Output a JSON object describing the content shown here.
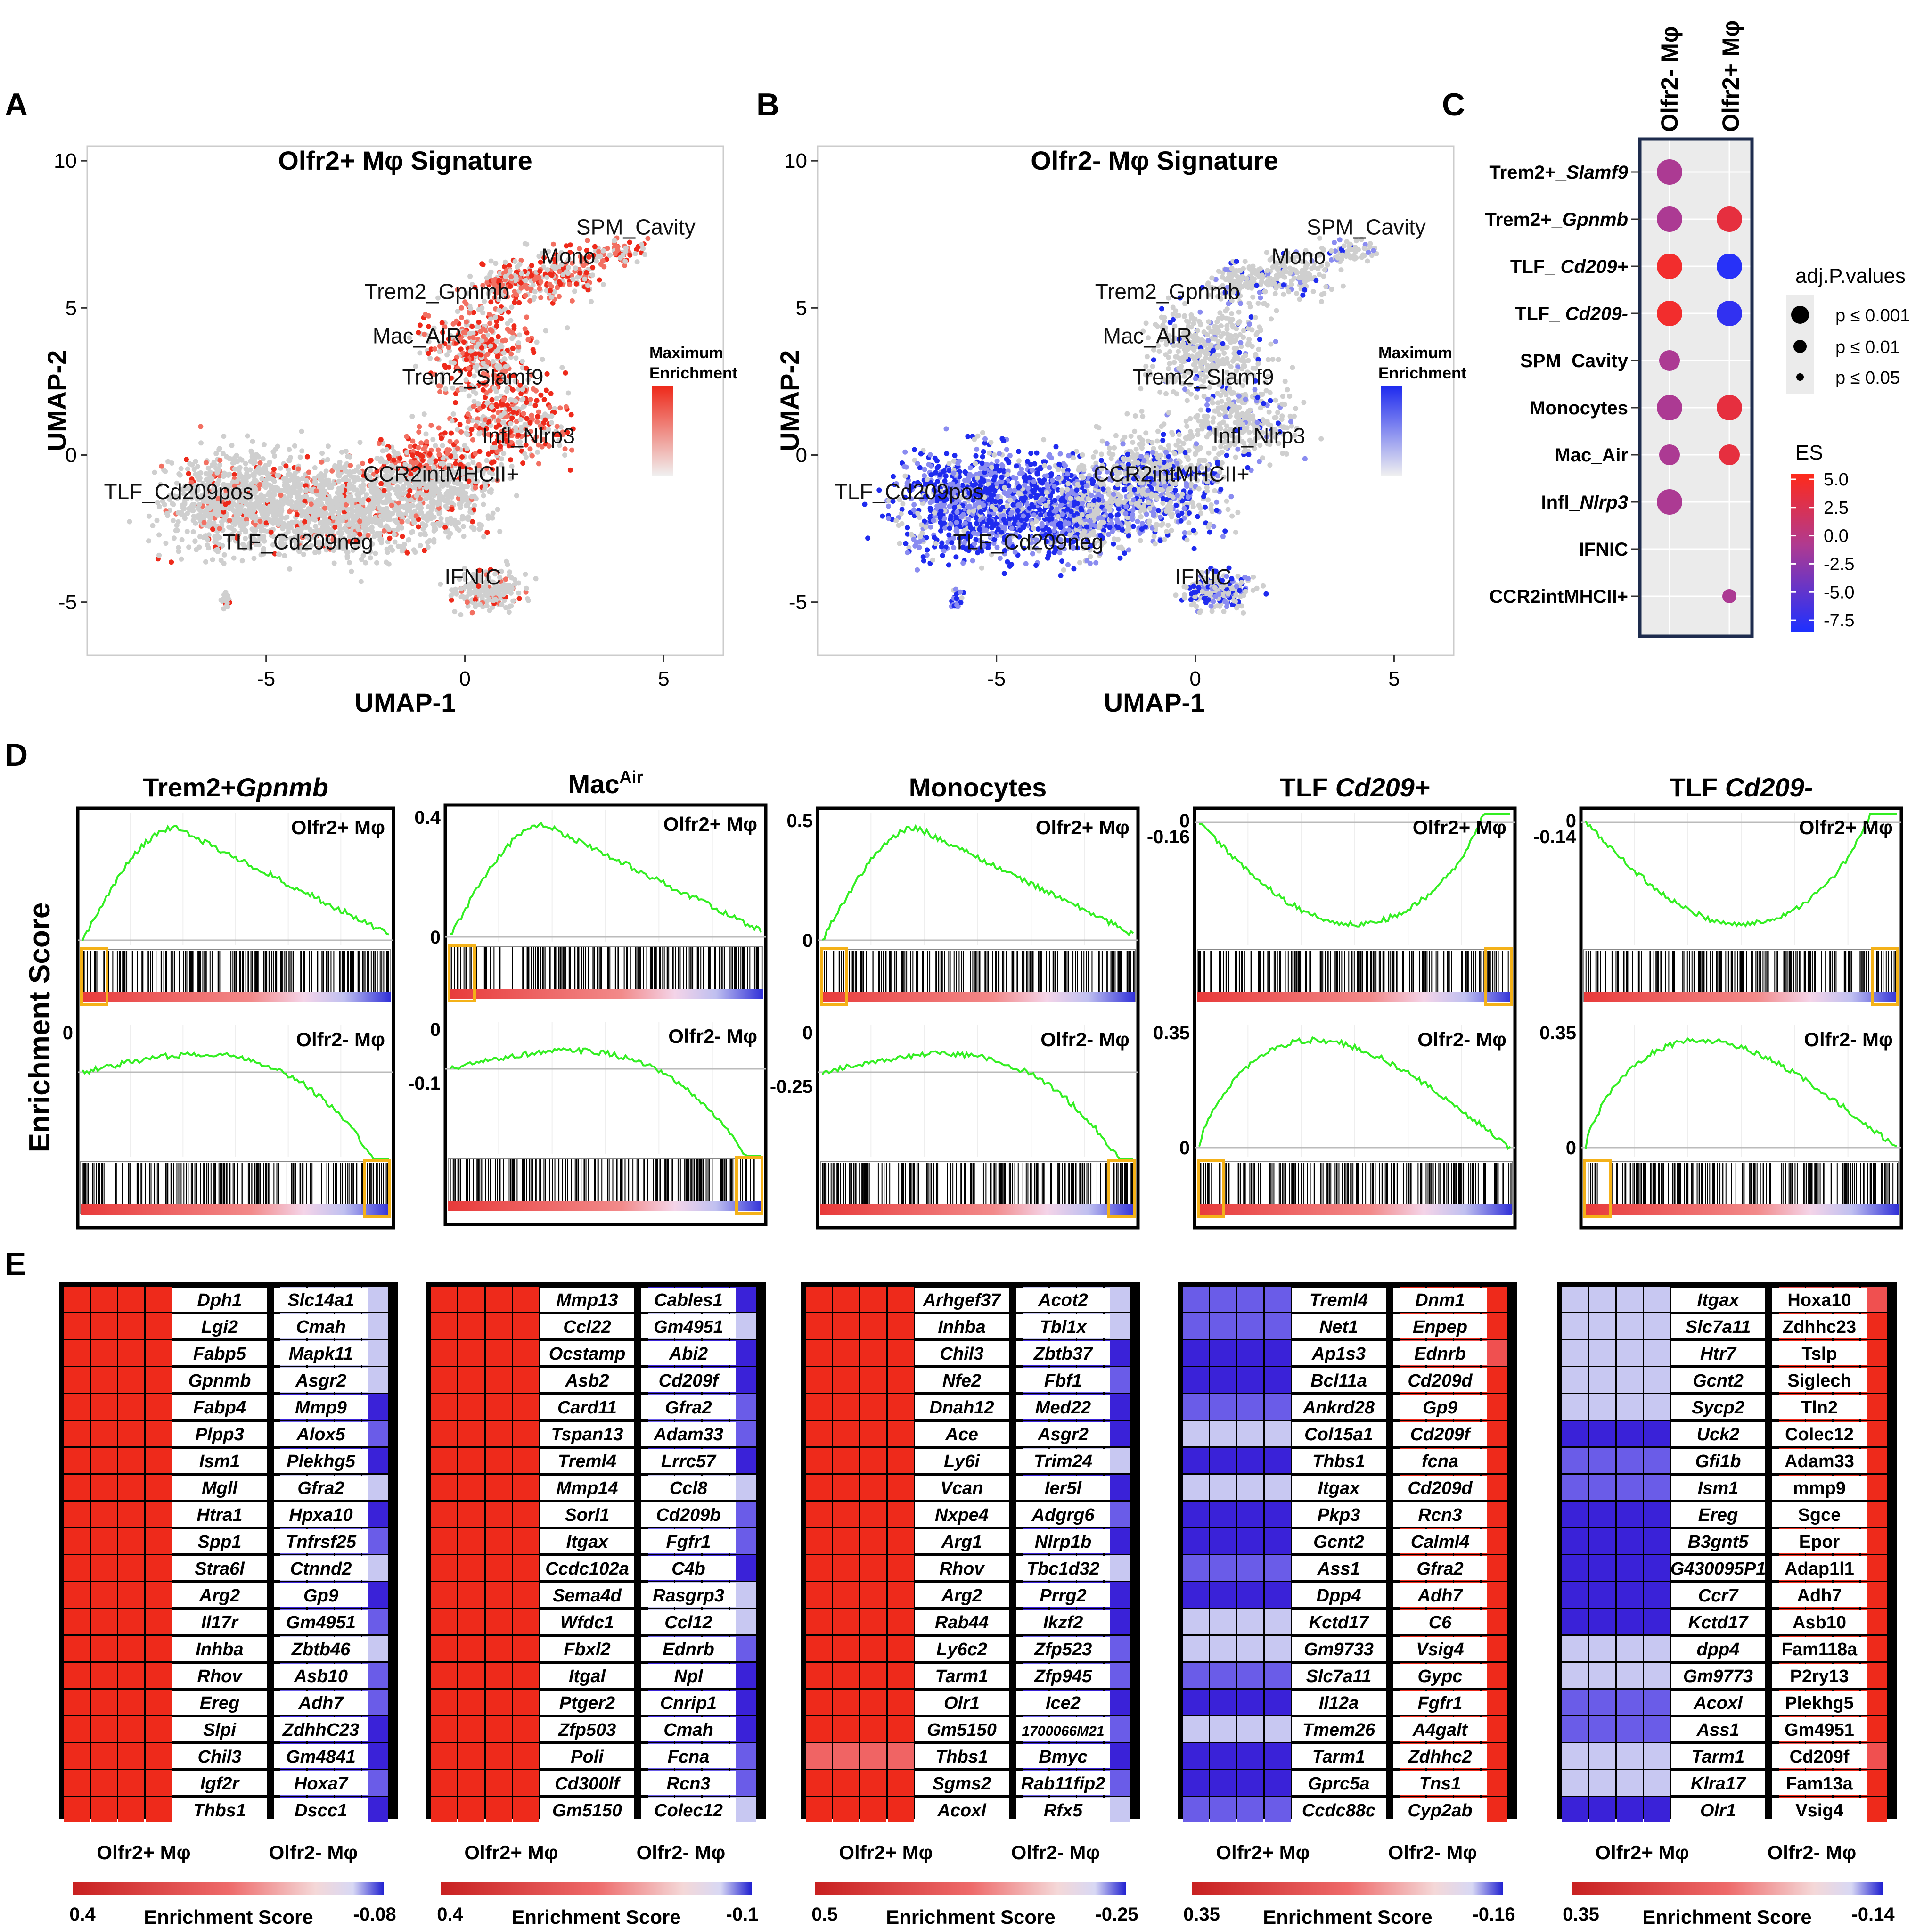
{
  "panel_letters": {
    "a": "A",
    "b": "B",
    "c": "C",
    "d": "D",
    "e": "E"
  },
  "colors": {
    "red": "#ee2a1b",
    "blue": "#1f2bef",
    "grey": "#c8c8c8",
    "green": "#33ee22",
    "orange": "#f4b118",
    "navy": "#1e2c4e",
    "purple": "#a040c0",
    "magenta": "#c0306a"
  },
  "chart_data": [
    {
      "id": "A",
      "type": "scatter",
      "title": "Olfr2+ Mφ Signature",
      "xlabel": "UMAP-1",
      "ylabel": "UMAP-2",
      "xticks": [
        -5,
        0,
        5
      ],
      "yticks": [
        10,
        5,
        0,
        -5
      ],
      "xlim": [
        -9.5,
        6.5
      ],
      "ylim": [
        -6.8,
        10.5
      ],
      "cluster_labels": [
        {
          "label": "SPM_Cavity",
          "x": 4.3,
          "y": 7.5
        },
        {
          "label": "Mono",
          "x": 2.6,
          "y": 6.5
        },
        {
          "label": "Trem2_Gpnmb",
          "x": -0.7,
          "y": 5.3
        },
        {
          "label": "Mac_AIR",
          "x": -1.2,
          "y": 3.8
        },
        {
          "label": "Trem2_Slamf9",
          "x": 0.2,
          "y": 2.4
        },
        {
          "label": "Infl_Nlrp3",
          "x": 1.6,
          "y": 0.4
        },
        {
          "label": "CCR2intMHCII+",
          "x": -0.6,
          "y": -0.9
        },
        {
          "label": "TLF_Cd209pos",
          "x": -7.2,
          "y": -1.5
        },
        {
          "label": "TLF_Cd209neg",
          "x": -4.2,
          "y": -3.2
        },
        {
          "label": "IFNIC",
          "x": 0.2,
          "y": -4.4
        }
      ],
      "legend": {
        "title": "Maximum Enrichment",
        "color": "#ee2a1b"
      }
    },
    {
      "id": "B",
      "type": "scatter",
      "title": "Olfr2- Mφ Signature",
      "xlabel": "UMAP-1",
      "ylabel": "UMAP-2",
      "xticks": [
        -5,
        0,
        5
      ],
      "yticks": [
        10,
        5,
        0,
        -5
      ],
      "xlim": [
        -9.5,
        6.5
      ],
      "ylim": [
        -6.8,
        10.5
      ],
      "cluster_labels": [
        {
          "label": "SPM_Cavity",
          "x": 4.3,
          "y": 7.5
        },
        {
          "label": "Mono",
          "x": 2.6,
          "y": 6.5
        },
        {
          "label": "Trem2_Gpnmb",
          "x": -0.7,
          "y": 5.3
        },
        {
          "label": "Mac_AIR",
          "x": -1.2,
          "y": 3.8
        },
        {
          "label": "Trem2_Slamf9",
          "x": 0.2,
          "y": 2.4
        },
        {
          "label": "Infl_Nlrp3",
          "x": 1.6,
          "y": 0.4
        },
        {
          "label": "CCR2intMHCII+",
          "x": -0.6,
          "y": -0.9
        },
        {
          "label": "TLF_Cd209pos",
          "x": -7.2,
          "y": -1.5
        },
        {
          "label": "TLF_Cd209neg",
          "x": -4.2,
          "y": -3.2
        },
        {
          "label": "IFNIC",
          "x": 0.2,
          "y": -4.4
        }
      ],
      "legend": {
        "title": "Maximum Enrichment",
        "color": "#1f2bef"
      }
    },
    {
      "id": "C",
      "type": "dotplot",
      "columns": [
        "Olfr2- Mφ",
        "Olfr2+ Mφ"
      ],
      "rows": [
        {
          "label": "Trem2+_",
          "italic": "Slamf9",
          "dots": [
            {
              "col": 0,
              "es": -1.0,
              "size": "p ≤ 0.001"
            }
          ]
        },
        {
          "label": "Trem2+_",
          "italic": "Gpnmb",
          "dots": [
            {
              "col": 0,
              "es": -1.0,
              "size": "p ≤ 0.001"
            },
            {
              "col": 1,
              "es": 3.5,
              "size": "p ≤ 0.001"
            }
          ]
        },
        {
          "label": "TLF_ ",
          "italic": "Cd209+",
          "dots": [
            {
              "col": 0,
              "es": 4.5,
              "size": "p ≤ 0.001"
            },
            {
              "col": 1,
              "es": -8.0,
              "size": "p ≤ 0.001"
            }
          ]
        },
        {
          "label": "TLF_ ",
          "italic": "Cd209-",
          "dots": [
            {
              "col": 0,
              "es": 4.5,
              "size": "p ≤ 0.001"
            },
            {
              "col": 1,
              "es": -7.5,
              "size": "p ≤ 0.001"
            }
          ]
        },
        {
          "label": "SPM_Cavity",
          "italic": "",
          "dots": [
            {
              "col": 0,
              "es": -1.0,
              "size": "p ≤ 0.01"
            }
          ]
        },
        {
          "label": "Monocytes",
          "italic": "",
          "dots": [
            {
              "col": 0,
              "es": -1.0,
              "size": "p ≤ 0.001"
            },
            {
              "col": 1,
              "es": 3.5,
              "size": "p ≤ 0.001"
            }
          ]
        },
        {
          "label": "Mac_Air",
          "italic": "",
          "dots": [
            {
              "col": 0,
              "es": -1.0,
              "size": "p ≤ 0.01"
            },
            {
              "col": 1,
              "es": 3.5,
              "size": "p ≤ 0.01"
            }
          ]
        },
        {
          "label": "Infl_",
          "italic": "Nlrp3",
          "dots": [
            {
              "col": 0,
              "es": -1.0,
              "size": "p ≤ 0.001"
            }
          ]
        },
        {
          "label": "IFNIC",
          "italic": "",
          "dots": []
        },
        {
          "label": "CCR2intMHCII+",
          "italic": "",
          "dots": [
            {
              "col": 1,
              "es": -1.0,
              "size": "p ≤ 0.05"
            }
          ]
        }
      ],
      "size_legend": {
        "title": "adj.P.values",
        "levels": [
          "p ≤ 0.001",
          "p ≤ 0.01",
          "p ≤ 0.05"
        ]
      },
      "color_legend": {
        "title": "ES",
        "ticks": [
          "5.0",
          "2.5",
          "0.0",
          "-2.5",
          "-5.0",
          "-7.5"
        ],
        "range": [
          -8.5,
          5.5
        ]
      }
    },
    {
      "id": "D",
      "type": "line",
      "ylabel": "Enrichment Score",
      "kind": "GSEA running enrichment score",
      "panels": [
        {
          "title": "Trem2+",
          "title_it": "Gpnmb",
          "top": {
            "label": "Olfr2+ Mφ",
            "tick": "",
            "tick_val": null
          },
          "bottom": {
            "label": "Olfr2- Mφ",
            "tick": "0",
            "tick_val": 0
          }
        },
        {
          "title": "Mac",
          "title_sup": "Air",
          "top": {
            "label": "Olfr2+ Mφ",
            "tick": "0.4",
            "tick_val": 0.4,
            "tick2": "0"
          },
          "bottom": {
            "label": "Olfr2- Mφ",
            "tick": "0",
            "tick_val": 0,
            "tick2": "-0.1"
          }
        },
        {
          "title": "Monocytes",
          "top": {
            "label": "Olfr2+ Mφ",
            "tick": "0.5",
            "tick_val": 0.5,
            "tick2": "0"
          },
          "bottom": {
            "label": "Olfr2- Mφ",
            "tick": "0",
            "tick_val": 0,
            "tick2": "-0.25"
          }
        },
        {
          "title": "TLF ",
          "title_it": "Cd209+",
          "top": {
            "label": "Olfr2+ Mφ",
            "tick": "0",
            "tick_val": 0,
            "tick2": "-0.16"
          },
          "bottom": {
            "label": "Olfr2- Mφ",
            "tick": "0.35",
            "tick_val": 0.35,
            "tick2": "0"
          }
        },
        {
          "title": "TLF ",
          "title_it": "Cd209-",
          "top": {
            "label": "Olfr2+ Mφ",
            "tick": "0",
            "tick_val": 0,
            "tick2": "-0.14"
          },
          "bottom": {
            "label": "Olfr2- Mφ",
            "tick": "0.35",
            "tick_val": 0.35,
            "tick2": "0"
          }
        }
      ]
    },
    {
      "id": "E",
      "type": "heatmap",
      "xlabel_left": "Olfr2+ Mφ",
      "xlabel_right": "Olfr2- Mφ",
      "scale_label": "Enrichment Score",
      "panels": [
        {
          "left_genes": [
            "Dph1",
            "Lgi2",
            "Fabp5",
            "Gpnmb",
            "Fabp4",
            "Plpp3",
            "Ism1",
            "Mgll",
            "Htra1",
            "Spp1",
            "Stra6l",
            "Arg2",
            "Il17r",
            "Inhba",
            "Rhov",
            "Ereg",
            "Slpi",
            "Chil3",
            "Igf2r",
            "Thbs1"
          ],
          "right_genes": [
            "Slc14a1",
            "Cmah",
            "Mapk11",
            "Asgr2",
            "Mmp9",
            "Alox5",
            "Plekhg5",
            "Gfra2",
            "Hpxa10",
            "Tnfrsf25",
            "Ctnnd2",
            "Gp9",
            "Gm4951",
            "Zbtb46",
            "Asb10",
            "Adh7",
            "ZdhhC23",
            "Gm4841",
            "Hoxa7",
            "Dscc1"
          ],
          "left_color": "red",
          "right_color": "blue",
          "scale_left": "0.4",
          "scale_right": "-0.08"
        },
        {
          "left_genes": [
            "Mmp13",
            "Ccl22",
            "Ocstamp",
            "Asb2",
            "Card11",
            "Tspan13",
            "Treml4",
            "Mmp14",
            "Sorl1",
            "Itgax",
            "Ccdc102a",
            "Sema4d",
            "Wfdc1",
            "Fbxl2",
            "Itgal",
            "Ptger2",
            "Zfp503",
            "Poli",
            "Cd300lf",
            "Gm5150"
          ],
          "right_genes": [
            "Cables1",
            "Gm4951",
            "Abi2",
            "Cd209f",
            "Gfra2",
            "Adam33",
            "Lrrc57",
            "Ccl8",
            "Cd209b",
            "Fgfr1",
            "C4b",
            "Rasgrp3",
            "Ccl12",
            "Ednrb",
            "Npl",
            "Cnrip1",
            "Cmah",
            "Fcna",
            "Rcn3",
            "Colec12"
          ],
          "left_color": "red",
          "right_color": "blue",
          "scale_left": "0.4",
          "scale_right": "-0.1"
        },
        {
          "left_genes": [
            "Arhgef37",
            "Inhba",
            "Chil3",
            "Nfe2",
            "Dnah12",
            "Ace",
            "Ly6i",
            "Vcan",
            "Nxpe4",
            "Arg1",
            "Rhov",
            "Arg2",
            "Rab44",
            "Ly6c2",
            "Tarm1",
            "Olr1",
            "Gm5150",
            "Thbs1",
            "Sgms2",
            "Acoxl"
          ],
          "right_genes": [
            "Acot2",
            "Tbl1x",
            "Zbtb37",
            "Fbf1",
            "Med22",
            "Asgr2",
            "Trim24",
            "Ier5l",
            "Adgrg6",
            "Nlrp1b",
            "Tbc1d32",
            "Prrg2",
            "Ikzf2",
            "Zfp523",
            "Zfp945",
            "Ice2",
            "1700066M21",
            "Bmyc",
            "Rab11fip2",
            "Rfx5"
          ],
          "left_color": "red",
          "right_color": "blue",
          "scale_left": "0.5",
          "scale_right": "-0.25"
        },
        {
          "left_genes": [
            "Treml4",
            "Net1",
            "Ap1s3",
            "Bcl11a",
            "Ankrd28",
            "Col15a1",
            "Thbs1",
            "Itgax",
            "Pkp3",
            "Gcnt2",
            "Ass1",
            "Dpp4",
            "Kctd17",
            "Gm9733",
            "Slc7a11",
            "Il12a",
            "Tmem26",
            "Tarm1",
            "Gprc5a",
            "Ccdc88c"
          ],
          "right_genes": [
            "Dnm1",
            "Enpep",
            "Ednrb",
            "Cd209d",
            "Gp9",
            "Cd209f",
            "fcna",
            "Cd209d",
            "Rcn3",
            "Calml4",
            "Gfra2",
            "Adh7",
            "C6",
            "Vsig4",
            "Gypc",
            "Fgfr1",
            "A4galt",
            "Zdhhc2",
            "Tns1",
            "Cyp2ab"
          ],
          "left_color": "blue",
          "right_color": "red",
          "scale_left": "0.35",
          "scale_right": "-0.16"
        },
        {
          "left_genes": [
            "Itgax",
            "Slc7a11",
            "Htr7",
            "Gcnt2",
            "Sycp2",
            "Uck2",
            "Gfi1b",
            "Ism1",
            "Ereg",
            "B3gnt5",
            "G430095P1",
            "Ccr7",
            "Kctd17",
            "dpp4",
            "Gm9773",
            "Acoxl",
            "Ass1",
            "Tarm1",
            "Klra17",
            "Olr1"
          ],
          "right_genes": [
            "Hoxa10",
            "Zdhhc23",
            "Tslp",
            "Siglech",
            "Tln2",
            "Colec12",
            "Adam33",
            "mmp9",
            "Sgce",
            "Epor",
            "Adap1l1",
            "Adh7",
            "Asb10",
            "Fam118a",
            "P2ry13",
            "Plekhg5",
            "Gm4951",
            "Cd209f",
            "Fam13a",
            "Vsig4"
          ],
          "left_color": "blue",
          "right_color": "red",
          "scale_left": "0.35",
          "scale_right": "-0.14"
        }
      ]
    }
  ]
}
